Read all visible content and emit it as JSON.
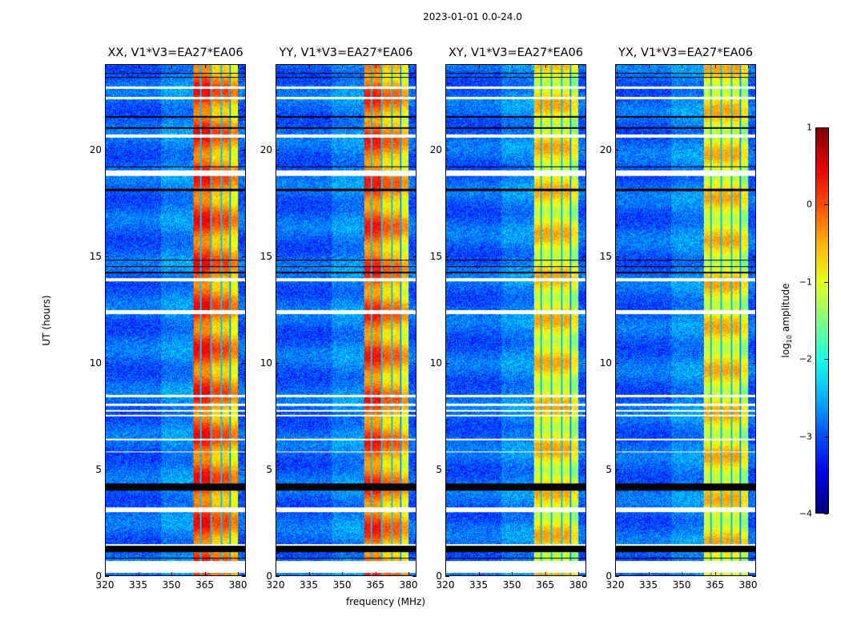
{
  "chart_data": {
    "type": "heatmap",
    "title": "2023-01-01 0.0-24.0",
    "xlabel": "frequency (MHz)",
    "ylabel": "UT (hours)",
    "xlim": [
      320,
      383.6
    ],
    "ylim": [
      0,
      24
    ],
    "xticks": [
      "320",
      "335",
      "350",
      "365",
      "380"
    ],
    "yticks": [
      "0",
      "5",
      "10",
      "15",
      "20"
    ],
    "panels": [
      {
        "title": "XX, V1*V3=EA27*EA06",
        "pol": "XX",
        "rfi_level": -0.3
      },
      {
        "title": "YY, V1*V3=EA27*EA06",
        "pol": "YY",
        "rfi_level": -0.4
      },
      {
        "title": "XY, V1*V3=EA27*EA06",
        "pol": "XY",
        "rfi_level": -0.8
      },
      {
        "title": "YX, V1*V3=EA27*EA06",
        "pol": "YX",
        "rfi_level": -0.8
      }
    ],
    "background_level": -2.9,
    "rfi_band_mhz": [
      360,
      380
    ],
    "flagged_white_ut": [
      [
        22.9,
        23.0
      ],
      [
        22.4,
        22.5
      ],
      [
        20.6,
        20.75
      ],
      [
        18.8,
        19.05
      ],
      [
        13.85,
        14.0
      ],
      [
        12.3,
        12.5
      ],
      [
        8.4,
        8.5
      ],
      [
        8.0,
        8.1
      ],
      [
        7.7,
        7.8
      ],
      [
        7.5,
        7.55
      ],
      [
        6.35,
        6.45
      ],
      [
        5.8,
        5.85
      ],
      [
        3.0,
        3.2
      ],
      [
        1.4,
        1.5
      ],
      [
        0.15,
        0.7
      ]
    ],
    "flagged_black_ut": [
      [
        23.6,
        23.65
      ],
      [
        23.4,
        23.45
      ],
      [
        21.55,
        21.6
      ],
      [
        21.0,
        21.1
      ],
      [
        19.2,
        19.25
      ],
      [
        18.1,
        18.2
      ],
      [
        14.8,
        14.85
      ],
      [
        14.5,
        14.55
      ],
      [
        14.2,
        14.3
      ],
      [
        4.0,
        4.35
      ],
      [
        1.1,
        1.4
      ],
      [
        0.8,
        0.85
      ]
    ],
    "colorbar": {
      "label": "log10 amplitude",
      "label_base": "log",
      "label_sub": "10",
      "label_rest": " amplitude",
      "range": [
        -4,
        1
      ],
      "ticks": [
        "1",
        "0",
        "−1",
        "−2",
        "−3",
        "−4"
      ],
      "colormap": "jet"
    }
  }
}
